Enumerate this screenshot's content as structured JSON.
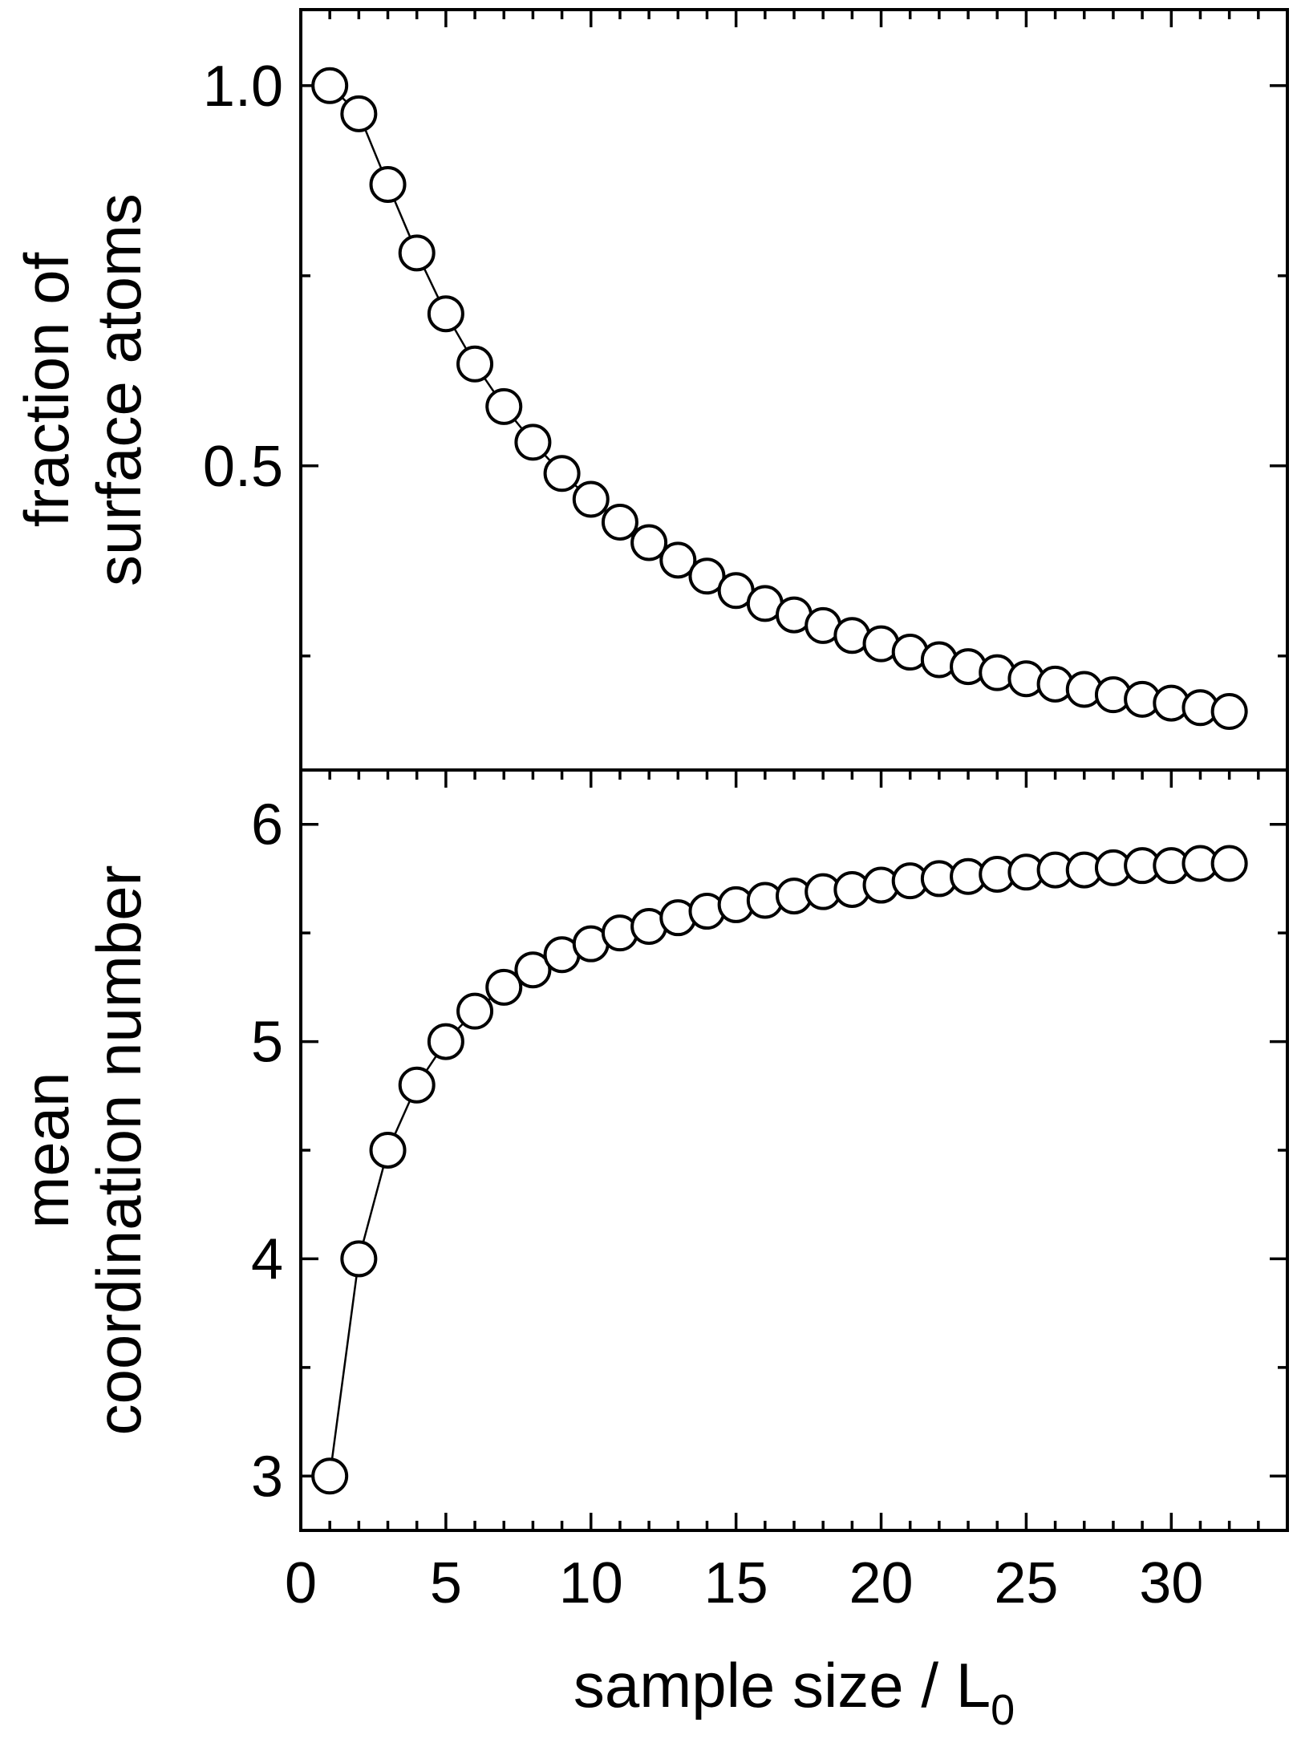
{
  "chart_data": {
    "type": "scatter",
    "x_axis": {
      "label_main": "sample size / L",
      "label_subscript": "0",
      "range": [
        0,
        34
      ],
      "ticks": [
        0,
        5,
        10,
        15,
        20,
        25,
        30
      ],
      "tick_labels": [
        "0",
        "5",
        "10",
        "15",
        "20",
        "25",
        "30"
      ],
      "minor_ticks": [
        1,
        2,
        3,
        4,
        6,
        7,
        8,
        9,
        11,
        12,
        13,
        14,
        16,
        17,
        18,
        19,
        21,
        22,
        23,
        24,
        26,
        27,
        28,
        29,
        31,
        32,
        33
      ]
    },
    "panels": [
      {
        "ylabel_lines": [
          "fraction of",
          "surface atoms"
        ],
        "ylim": [
          0.1,
          1.1
        ],
        "y_ticks": [
          0.5,
          1.0
        ],
        "y_tick_labels": [
          "0.5",
          "1.0"
        ],
        "y_minor_ticks": [
          0.25,
          0.75
        ],
        "series": {
          "x": [
            1,
            2,
            3,
            4,
            5,
            6,
            7,
            8,
            9,
            10,
            11,
            12,
            13,
            14,
            15,
            16,
            17,
            18,
            19,
            20,
            21,
            22,
            23,
            24,
            25,
            26,
            27,
            28,
            29,
            30,
            31,
            32
          ],
          "values": [
            1.0,
            0.963,
            0.87,
            0.78,
            0.7,
            0.634,
            0.578,
            0.531,
            0.49,
            0.456,
            0.426,
            0.399,
            0.376,
            0.355,
            0.336,
            0.319,
            0.304,
            0.29,
            0.277,
            0.266,
            0.255,
            0.245,
            0.236,
            0.228,
            0.22,
            0.213,
            0.206,
            0.199,
            0.193,
            0.188,
            0.182,
            0.177
          ]
        }
      },
      {
        "ylabel_lines": [
          "mean",
          "coordination number"
        ],
        "ylim": [
          2.75,
          6.25
        ],
        "y_ticks": [
          3,
          4,
          5,
          6
        ],
        "y_tick_labels": [
          "3",
          "4",
          "5",
          "6"
        ],
        "y_minor_ticks": [
          3.5,
          4.5,
          5.5
        ],
        "series": {
          "x": [
            1,
            2,
            3,
            4,
            5,
            6,
            7,
            8,
            9,
            10,
            11,
            12,
            13,
            14,
            15,
            16,
            17,
            18,
            19,
            20,
            21,
            22,
            23,
            24,
            25,
            26,
            27,
            28,
            29,
            30,
            31,
            32
          ],
          "values": [
            3.0,
            4.0,
            4.5,
            4.8,
            5.0,
            5.14,
            5.25,
            5.33,
            5.4,
            5.45,
            5.5,
            5.53,
            5.57,
            5.6,
            5.63,
            5.65,
            5.67,
            5.69,
            5.7,
            5.72,
            5.74,
            5.75,
            5.76,
            5.77,
            5.78,
            5.79,
            5.79,
            5.8,
            5.81,
            5.81,
            5.82,
            5.82
          ]
        }
      }
    ],
    "grid": false,
    "legend": "none"
  }
}
